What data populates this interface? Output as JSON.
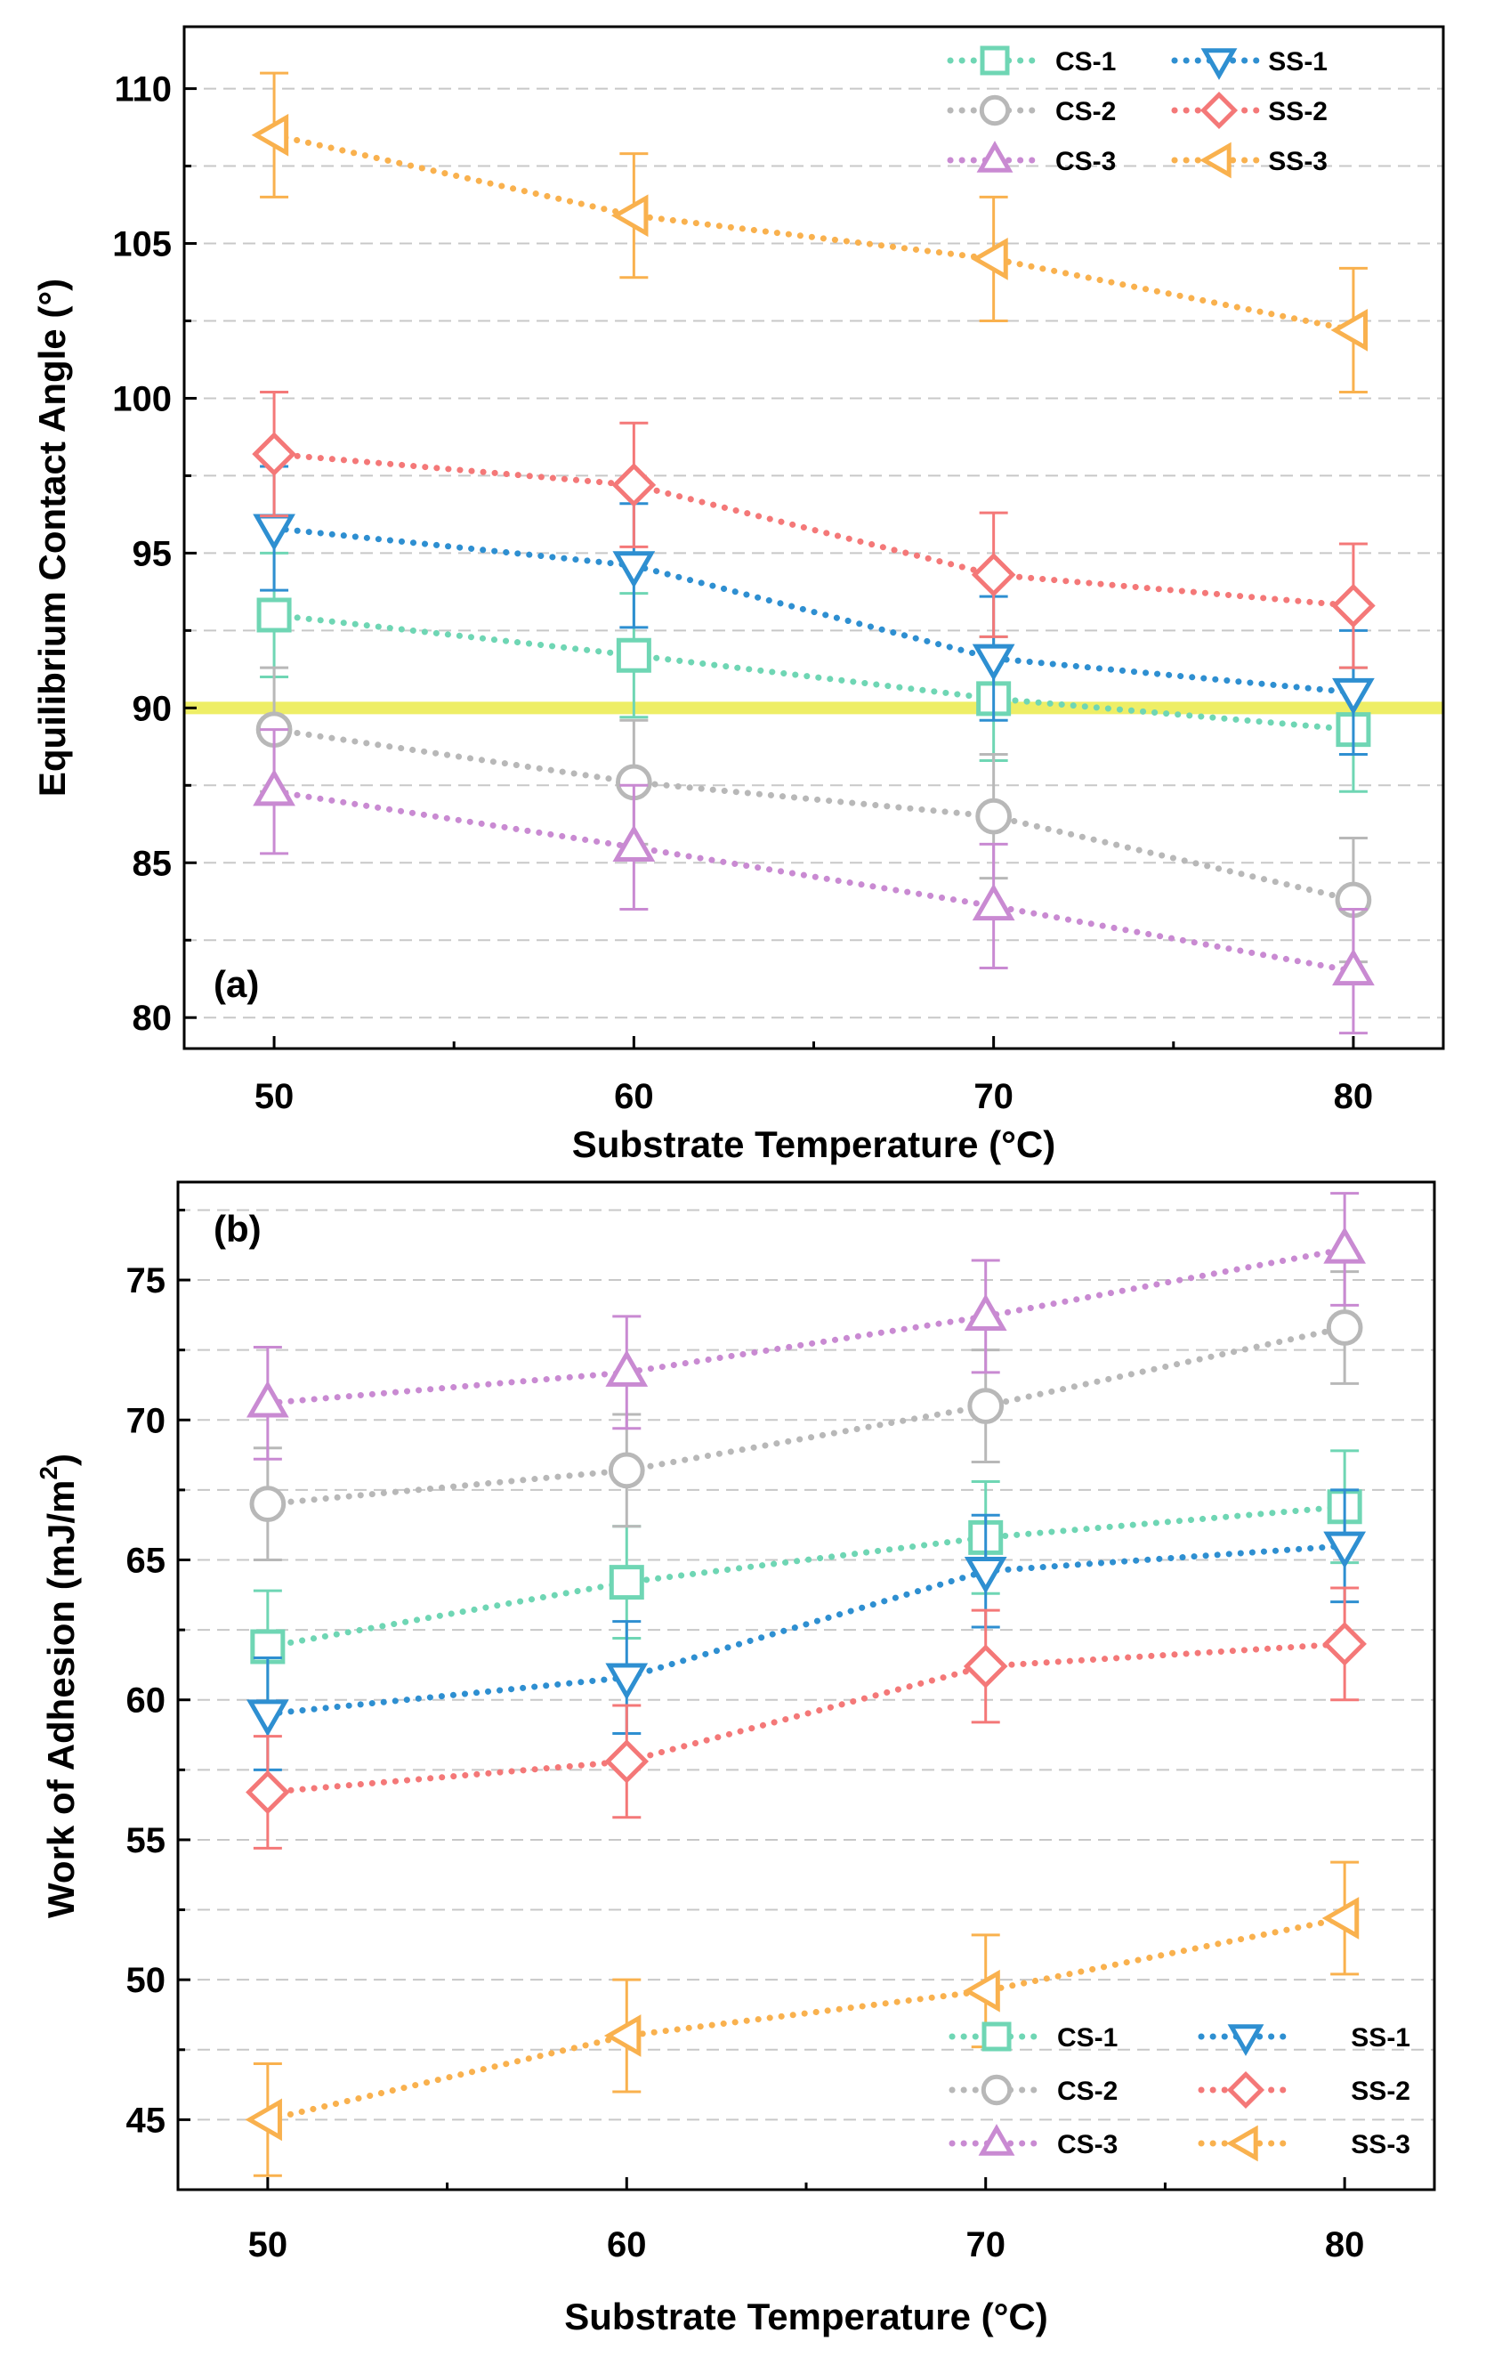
{
  "colors": {
    "CS-1": "#6fd6b4",
    "CS-2": "#b8b8b8",
    "CS-3": "#c98ad2",
    "SS-1": "#2e8fd1",
    "SS-2": "#f47878",
    "SS-3": "#f9b14e",
    "reference_line": "#eeee66"
  },
  "chart_data": [
    {
      "type": "line",
      "panel_label": "(a)",
      "xlabel": "Substrate Temperature (°C)",
      "ylabel": "Equilibrium Contact Angle (°)",
      "x": [
        50,
        60,
        70,
        80
      ],
      "xticks": [
        "50",
        "60",
        "70",
        "80"
      ],
      "xlim": [
        47.5,
        82.5
      ],
      "ylim": [
        79,
        112
      ],
      "yticks": [
        "80",
        "85",
        "90",
        "95",
        "100",
        "105",
        "110"
      ],
      "reference_line_y": 90,
      "legend_position": "top-right",
      "series": [
        {
          "name": "CS-1",
          "marker": "square",
          "values": [
            93.0,
            91.7,
            90.3,
            89.3
          ],
          "error": [
            2,
            2,
            2,
            2
          ]
        },
        {
          "name": "SS-1",
          "marker": "triangle-down",
          "values": [
            95.8,
            94.6,
            91.6,
            90.5
          ],
          "error": [
            2,
            2,
            2,
            2
          ]
        },
        {
          "name": "CS-2",
          "marker": "circle",
          "values": [
            89.3,
            87.6,
            86.5,
            83.8
          ],
          "error": [
            2,
            2,
            2,
            2
          ]
        },
        {
          "name": "SS-2",
          "marker": "diamond",
          "values": [
            98.2,
            97.2,
            94.3,
            93.3
          ],
          "error": [
            2,
            2,
            2,
            2
          ]
        },
        {
          "name": "CS-3",
          "marker": "triangle-up",
          "values": [
            87.3,
            85.5,
            83.6,
            81.5
          ],
          "error": [
            2,
            2,
            2,
            2
          ]
        },
        {
          "name": "SS-3",
          "marker": "triangle-left",
          "values": [
            108.5,
            105.9,
            104.5,
            102.2
          ],
          "error": [
            2,
            2,
            2,
            2
          ]
        }
      ]
    },
    {
      "type": "line",
      "panel_label": "(b)",
      "xlabel": "Substrate Temperature (°C)",
      "ylabel": "Work of Adhesion (mJ/m",
      "ylabel_sup": "2",
      "ylabel_end": ")",
      "x": [
        50,
        60,
        70,
        80
      ],
      "xticks": [
        "50",
        "60",
        "70",
        "80"
      ],
      "xlim": [
        47.5,
        82.5
      ],
      "ylim": [
        42.5,
        78.5
      ],
      "yticks": [
        "45",
        "50",
        "55",
        "60",
        "65",
        "70",
        "75"
      ],
      "legend_position": "bottom-right",
      "series": [
        {
          "name": "CS-1",
          "marker": "square",
          "values": [
            61.9,
            64.2,
            65.8,
            66.9
          ],
          "error": [
            2,
            2,
            2,
            2
          ]
        },
        {
          "name": "SS-1",
          "marker": "triangle-down",
          "values": [
            59.5,
            60.8,
            64.6,
            65.5
          ],
          "error": [
            2,
            2,
            2,
            2
          ]
        },
        {
          "name": "CS-2",
          "marker": "circle",
          "values": [
            67.0,
            68.2,
            70.5,
            73.3
          ],
          "error": [
            2,
            2,
            2,
            2
          ]
        },
        {
          "name": "SS-2",
          "marker": "diamond",
          "values": [
            56.7,
            57.8,
            61.2,
            62.0
          ],
          "error": [
            2,
            2,
            2,
            2
          ]
        },
        {
          "name": "CS-3",
          "marker": "triangle-up",
          "values": [
            70.6,
            71.7,
            73.7,
            76.1
          ],
          "error": [
            2,
            2,
            2,
            2
          ]
        },
        {
          "name": "SS-3",
          "marker": "triangle-left",
          "values": [
            45.0,
            48.0,
            49.6,
            52.2
          ],
          "error": [
            2,
            2,
            2,
            2
          ]
        }
      ]
    }
  ]
}
